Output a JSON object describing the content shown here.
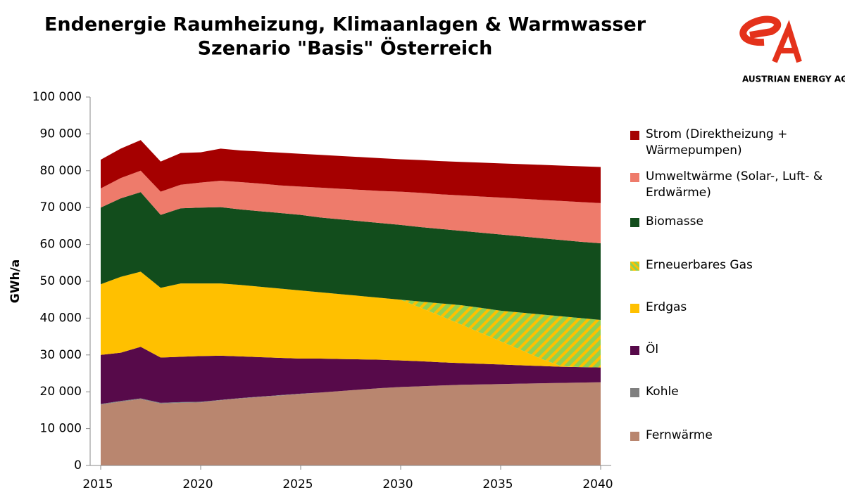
{
  "chart_data": {
    "type": "stacked_area",
    "title": "Endenergie Raumheizung, Klimaanlagen & Warmwasser",
    "subtitle": "Szenario \"Basis\" Österreich",
    "logo_text": "AUSTRIAN ENERGY AGENCY",
    "ylabel": "GWh/a",
    "x": [
      2015,
      2016,
      2017,
      2018,
      2019,
      2020,
      2021,
      2022,
      2023,
      2024,
      2025,
      2026,
      2027,
      2028,
      2029,
      2030,
      2031,
      2032,
      2033,
      2034,
      2035,
      2036,
      2037,
      2038,
      2039,
      2040
    ],
    "xlim": [
      2015,
      2040
    ],
    "xticks": [
      2015,
      2020,
      2025,
      2030,
      2035,
      2040
    ],
    "ylim": [
      0,
      100000
    ],
    "yticks": [
      0,
      {
        "value": 10000,
        "label": "10 000"
      },
      {
        "value": 20000,
        "label": "20 000"
      },
      {
        "value": 30000,
        "label": "30 000"
      },
      {
        "value": 40000,
        "label": "40 000"
      },
      {
        "value": 50000,
        "label": "50 000"
      },
      {
        "value": 60000,
        "label": "60 000"
      },
      {
        "value": 70000,
        "label": "70 000"
      },
      {
        "value": 80000,
        "label": "80 000"
      },
      {
        "value": 90000,
        "label": "90 000"
      },
      {
        "value": 100000,
        "label": "100 000"
      }
    ],
    "series": [
      {
        "name": "Fernwärme",
        "color": "#b9866f",
        "values": [
          16500,
          17300,
          18000,
          16800,
          17000,
          17100,
          17700,
          18200,
          18600,
          19000,
          19400,
          19800,
          20200,
          20600,
          21000,
          21300,
          21500,
          21700,
          21900,
          22000,
          22100,
          22200,
          22300,
          22400,
          22500,
          22600
        ]
      },
      {
        "name": "Kohle",
        "color": "#7f7f7f",
        "values": [
          200,
          200,
          200,
          200,
          200,
          200,
          100,
          100,
          100,
          100,
          100,
          0,
          0,
          0,
          0,
          0,
          0,
          0,
          0,
          0,
          0,
          0,
          0,
          0,
          0,
          0
        ]
      },
      {
        "name": "Öl",
        "color": "#570a4a",
        "values": [
          13300,
          13100,
          14000,
          12300,
          12300,
          12400,
          12000,
          11300,
          10700,
          10100,
          9500,
          9200,
          8700,
          8200,
          7700,
          7200,
          6800,
          6300,
          5900,
          5600,
          5300,
          5000,
          4700,
          4400,
          4200,
          4000
        ]
      },
      {
        "name": "Erdgas",
        "color": "#ffc000",
        "values": [
          19200,
          20600,
          20400,
          18900,
          19900,
          19700,
          19600,
          19400,
          19100,
          18800,
          18500,
          18000,
          17600,
          17200,
          16800,
          16500,
          14500,
          12600,
          10500,
          8400,
          6300,
          4200,
          2000,
          200,
          0,
          0
        ]
      },
      {
        "name": "Erneuerbares Gas",
        "color": "#92d050",
        "hatch": "#ffc000",
        "values": [
          0,
          0,
          0,
          0,
          0,
          0,
          0,
          0,
          0,
          0,
          0,
          0,
          0,
          0,
          0,
          0,
          1700,
          3400,
          5200,
          6800,
          8300,
          10100,
          12000,
          13500,
          13300,
          12900
        ]
      },
      {
        "name": "Biomasse",
        "color": "#124d1c",
        "values": [
          20800,
          21300,
          21600,
          19800,
          20400,
          20600,
          20700,
          20500,
          20500,
          20500,
          20500,
          20300,
          20300,
          20300,
          20300,
          20300,
          20200,
          20200,
          20200,
          20400,
          20700,
          20700,
          20700,
          20700,
          20700,
          20800
        ]
      },
      {
        "name": "Umweltwärme (Solar-, Luft- & Erdwärme)",
        "color": "#ee7b6b",
        "values": [
          5200,
          5500,
          5800,
          6300,
          6400,
          6800,
          7200,
          7400,
          7500,
          7500,
          7700,
          8100,
          8300,
          8500,
          8700,
          9000,
          9300,
          9400,
          9600,
          9800,
          10000,
          10200,
          10400,
          10600,
          10800,
          10900
        ]
      },
      {
        "name": "Strom (Direktheizung + Wärmepumpen)",
        "color": "#a50000",
        "values": [
          7800,
          8000,
          8300,
          8200,
          8600,
          8200,
          8700,
          8600,
          8700,
          8900,
          8900,
          8900,
          8900,
          8900,
          8900,
          8800,
          8900,
          9000,
          9100,
          9200,
          9300,
          9400,
          9500,
          9600,
          9700,
          9800
        ]
      }
    ]
  }
}
